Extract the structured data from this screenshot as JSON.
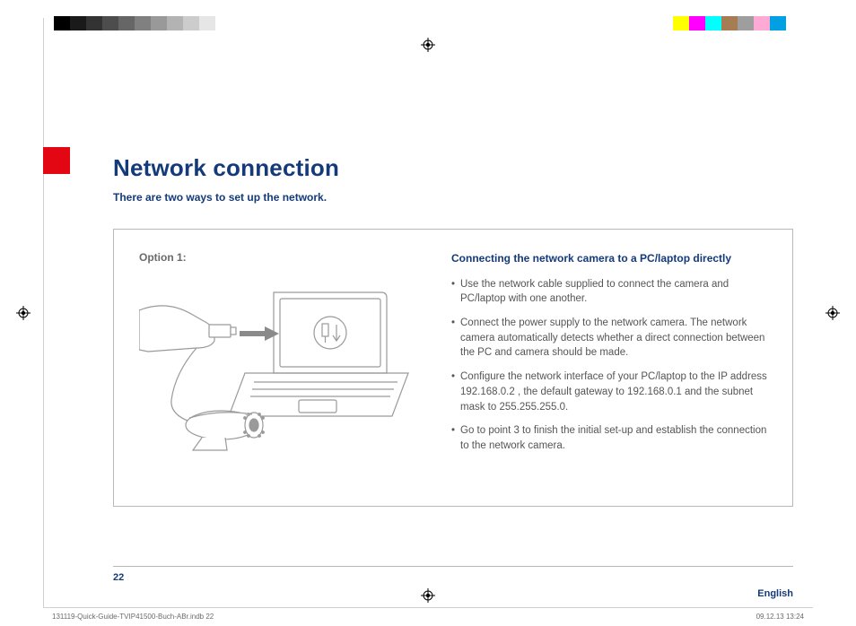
{
  "colorbar": {
    "grayscale": [
      "#000000",
      "#1a1a1a",
      "#333333",
      "#4d4d4d",
      "#666666",
      "#808080",
      "#999999",
      "#b3b3b3",
      "#cccccc",
      "#e6e6e6",
      "#ffffff"
    ],
    "colors": [
      "#ffff00",
      "#ff00ff",
      "#00ffff",
      "#a67c52",
      "#9e9e9e",
      "#ffaad4",
      "#00a0e3",
      "#ffffff"
    ]
  },
  "header": {
    "title": "Network connection",
    "subtitle": "There are two ways to set up the network.",
    "title_color": "#143a7a",
    "red_square_color": "#e30613"
  },
  "box": {
    "option_label": "Option 1:",
    "connect_title": "Connecting the network camera to a PC/laptop directly",
    "bullets": [
      "Use the network cable supplied to connect the camera and PC/laptop with one another.",
      "Connect the power supply to the network camera. The network camera automatically detects whether a direct connection between the PC and camera should be made.",
      "Configure the network interface of your PC/laptop to the IP address 192.168.0.2 , the default gateway to 192.168.0.1 and the subnet mask to 255.255.255.0.",
      "Go to point 3 to finish the initial set-up and establish the connection to the network camera."
    ],
    "border_color": "#b8b8b8",
    "text_color": "#555555"
  },
  "footer": {
    "page_number": "22",
    "language": "English",
    "filename": "131119-Quick-Guide-TVIP41500-Buch-ABr.indb   22",
    "date": "09.12.13   13:24"
  }
}
